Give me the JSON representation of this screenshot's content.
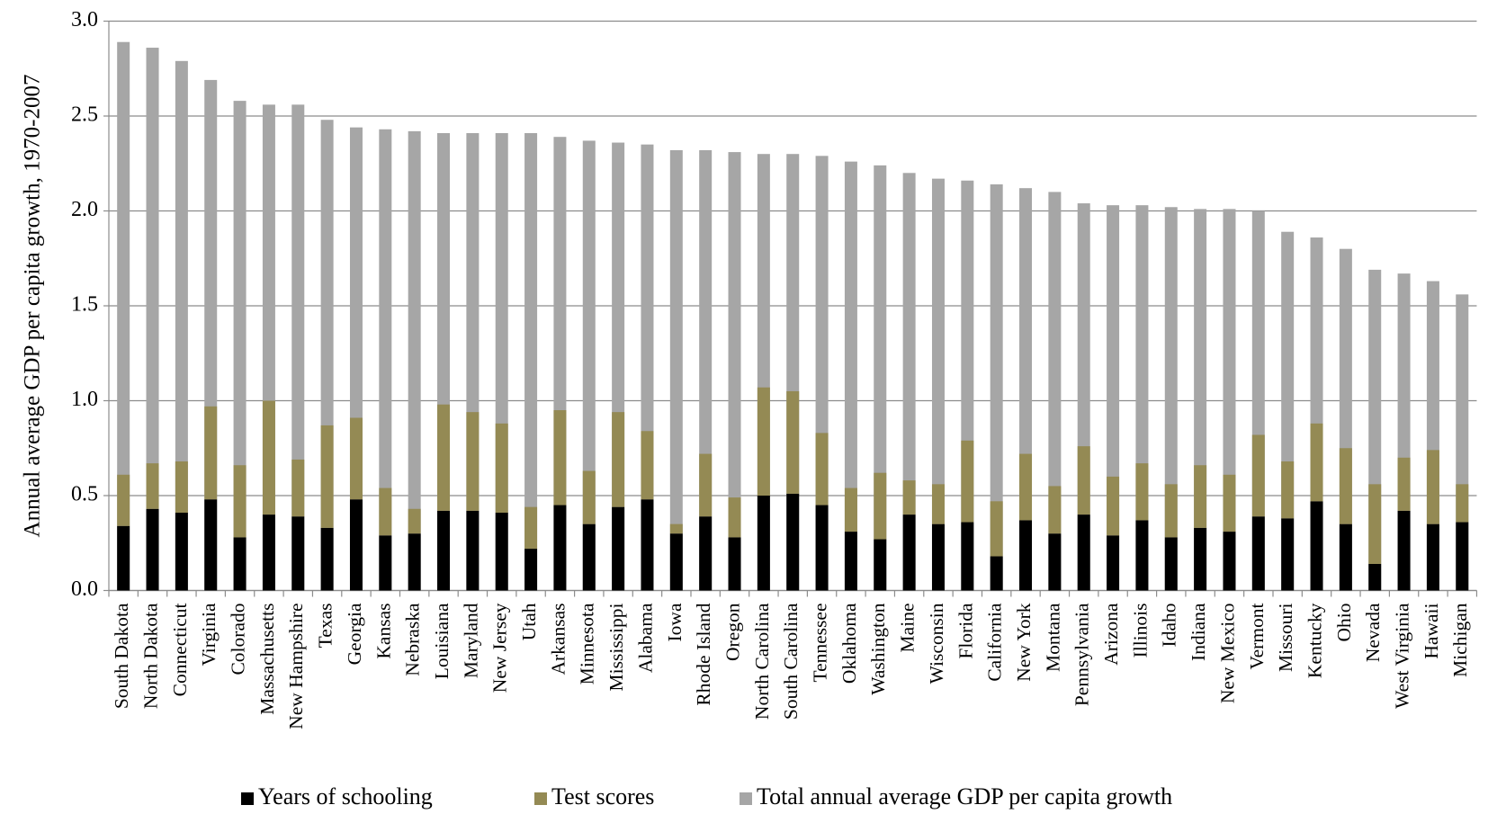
{
  "chart_data": {
    "type": "bar",
    "y_label": "Annual average GDP per capita growth, 1970-2007",
    "categories": [
      "South Dakota",
      "North Dakota",
      "Connecticut",
      "Virginia",
      "Colorado",
      "Massachusetts",
      "New Hampshire",
      "Texas",
      "Georgia",
      "Kansas",
      "Nebraska",
      "Louisiana",
      "Maryland",
      "New Jersey",
      "Utah",
      "Arkansas",
      "Minnesota",
      "Mississippi",
      "Alabama",
      "Iowa",
      "Rhode Island",
      "Oregon",
      "North Carolina",
      "South Carolina",
      "Tennessee",
      "Oklahoma",
      "Washington",
      "Maine",
      "Wisconsin",
      "Florida",
      "California",
      "New York",
      "Montana",
      "Pennsylvania",
      "Arizona",
      "Illinois",
      "Idaho",
      "Indiana",
      "New Mexico",
      "Vermont",
      "Missouri",
      "Kentucky",
      "Ohio",
      "Nevada",
      "West Virginia",
      "Hawaii",
      "Michigan"
    ],
    "series": [
      {
        "name": "Years of schooling",
        "color": "#000000",
        "stack": true,
        "values": [
          0.34,
          0.43,
          0.41,
          0.48,
          0.28,
          0.4,
          0.39,
          0.33,
          0.48,
          0.29,
          0.3,
          0.42,
          0.42,
          0.41,
          0.22,
          0.45,
          0.35,
          0.44,
          0.48,
          0.3,
          0.39,
          0.28,
          0.5,
          0.51,
          0.45,
          0.31,
          0.27,
          0.4,
          0.35,
          0.36,
          0.18,
          0.37,
          0.3,
          0.4,
          0.29,
          0.37,
          0.28,
          0.33,
          0.31,
          0.39,
          0.38,
          0.47,
          0.35,
          0.14,
          0.42,
          0.35,
          0.36
        ]
      },
      {
        "name": "Test scores",
        "color": "#948a54",
        "stack": true,
        "values": [
          0.27,
          0.24,
          0.27,
          0.49,
          0.38,
          0.6,
          0.3,
          0.54,
          0.43,
          0.25,
          0.13,
          0.56,
          0.52,
          0.47,
          0.22,
          0.5,
          0.28,
          0.5,
          0.36,
          0.05,
          0.33,
          0.21,
          0.57,
          0.54,
          0.38,
          0.23,
          0.35,
          0.18,
          0.21,
          0.43,
          0.29,
          0.35,
          0.25,
          0.36,
          0.31,
          0.3,
          0.28,
          0.33,
          0.3,
          0.43,
          0.3,
          0.41,
          0.4,
          0.42,
          0.28,
          0.39,
          0.2
        ]
      },
      {
        "name": "Total annual average GDP per capita growth",
        "color": "#a6a6a6",
        "stack": false,
        "values": [
          2.89,
          2.86,
          2.79,
          2.69,
          2.58,
          2.56,
          2.56,
          2.48,
          2.44,
          2.43,
          2.42,
          2.41,
          2.41,
          2.41,
          2.41,
          2.39,
          2.37,
          2.36,
          2.35,
          2.32,
          2.32,
          2.31,
          2.3,
          2.3,
          2.29,
          2.26,
          2.24,
          2.2,
          2.17,
          2.16,
          2.14,
          2.12,
          2.1,
          2.04,
          2.03,
          2.03,
          2.02,
          2.01,
          2.01,
          2.0,
          1.89,
          1.86,
          1.8,
          1.69,
          1.67,
          1.63,
          1.56
        ]
      }
    ],
    "ylim": [
      0,
      3
    ],
    "yticks": [
      {
        "value": 0,
        "label": "0.0"
      },
      0.5,
      {
        "value": 1,
        "label": "1.0"
      },
      1.5,
      {
        "value": 2,
        "label": "2.0"
      },
      2.5,
      {
        "value": 3,
        "label": "3.0"
      }
    ],
    "grid": true,
    "legend": "bottom"
  }
}
